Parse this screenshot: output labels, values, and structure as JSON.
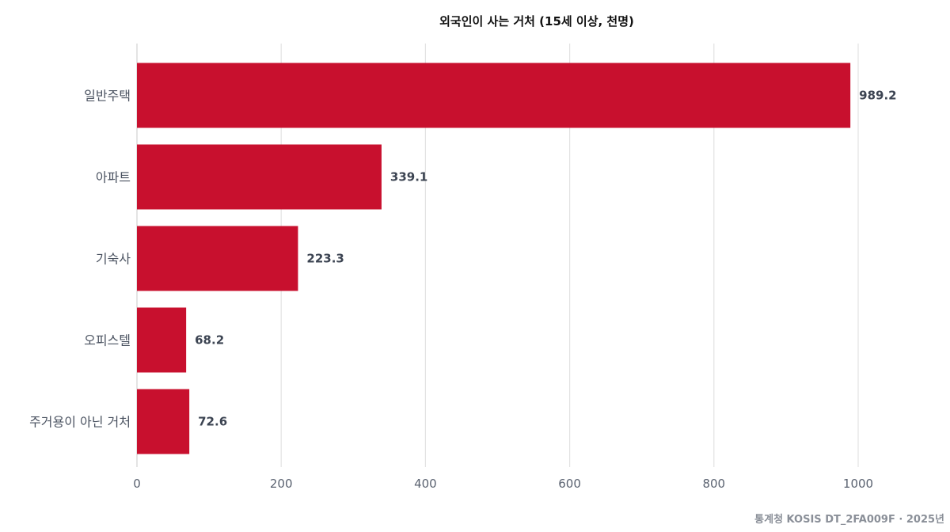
{
  "chart_data": {
    "type": "bar",
    "orientation": "horizontal",
    "title": "외국인이 사는 거처 (15세 이상, 천명)",
    "categories": [
      "일반주택",
      "아파트",
      "기숙사",
      "오피스텔",
      "주거용이 아닌 거처"
    ],
    "values": [
      989.2,
      339.1,
      223.3,
      68.2,
      72.6
    ],
    "value_labels": [
      "989.2",
      "339.1",
      "223.3",
      "68.2",
      "72.6"
    ],
    "xlim": [
      0,
      1000
    ],
    "x_ticks": [
      0,
      200,
      400,
      600,
      800,
      1000
    ],
    "x_tick_labels": [
      "0",
      "200",
      "400",
      "600",
      "800",
      "1000"
    ],
    "grid": true,
    "bar_color": "#c8102e",
    "source": "통계청 KOSIS DT_2FA009F · 2025년"
  }
}
